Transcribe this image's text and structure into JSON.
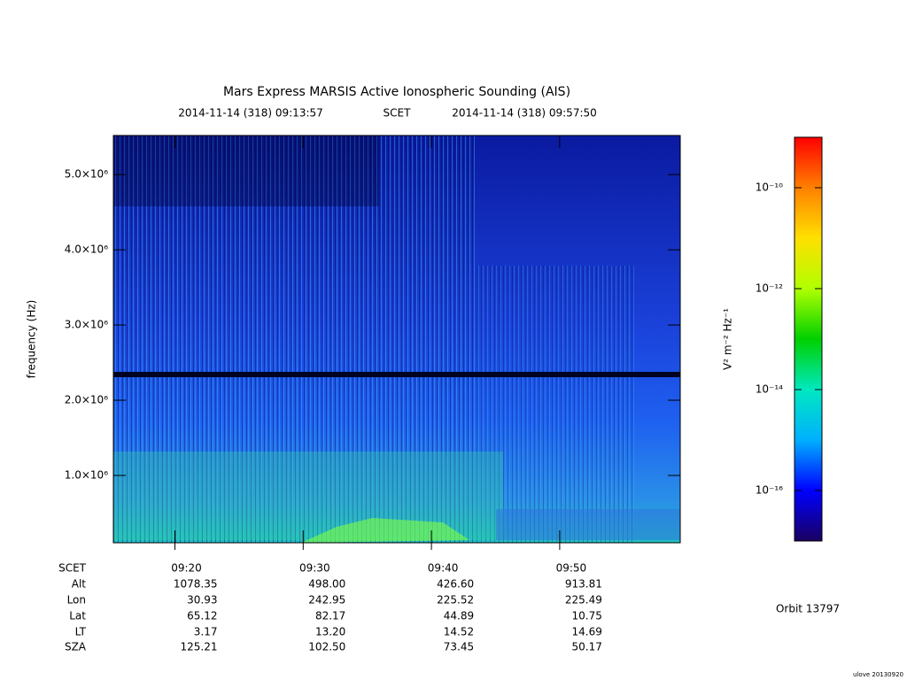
{
  "chart_data": {
    "type": "spectrogram",
    "title": "Mars Express MARSIS Active Ionospheric Sounding (AIS)",
    "start_time": "2014-11-14 (318) 09:13:57",
    "time_system": "SCET",
    "end_time": "2014-11-14 (318) 09:57:50",
    "y_label": "frequency (Hz)",
    "xlim": [
      555.2,
      599.4
    ],
    "xticks": [
      {
        "value": 560,
        "label": "09:20"
      },
      {
        "value": 570,
        "label": "09:30"
      },
      {
        "value": 580,
        "label": "09:40"
      },
      {
        "value": 590,
        "label": "09:50"
      }
    ],
    "ylim": [
      105000,
      5520000
    ],
    "yticks": [
      {
        "value": 1000000,
        "label": "1.0×10⁶"
      },
      {
        "value": 2000000,
        "label": "2.0×10⁶"
      },
      {
        "value": 3000000,
        "label": "3.0×10⁶"
      },
      {
        "value": 4000000,
        "label": "4.0×10⁶"
      },
      {
        "value": 5000000,
        "label": "5.0×10⁶"
      }
    ],
    "ephemeris": {
      "labels": [
        "SCET",
        "Alt",
        "Lon",
        "Lat",
        "LT",
        "SZA"
      ],
      "rows": [
        [
          "1078.35",
          "498.00",
          "426.60",
          "913.81"
        ],
        [
          "30.93",
          "242.95",
          "225.52",
          "225.49"
        ],
        [
          "65.12",
          "82.17",
          "44.89",
          "10.75"
        ],
        [
          "3.17",
          "13.20",
          "14.52",
          "14.69"
        ],
        [
          "125.21",
          "102.50",
          "73.45",
          "50.17"
        ]
      ]
    },
    "colorbar": {
      "label": "V² m⁻² Hz⁻¹",
      "log": true,
      "lim": [
        1e-17,
        1e-09
      ],
      "ticks": [
        {
          "value": 1e-10,
          "label": "10⁻¹⁰"
        },
        {
          "value": 1e-12,
          "label": "10⁻¹²"
        },
        {
          "value": 1e-14,
          "label": "10⁻¹⁴"
        },
        {
          "value": 1e-16,
          "label": "10⁻¹⁶"
        }
      ],
      "colors": [
        "#1a0060",
        "#0000ff",
        "#00b0ff",
        "#00e8c0",
        "#00d000",
        "#b0ff00",
        "#ffe000",
        "#ff8000",
        "#ff0000"
      ]
    },
    "orbit": "Orbit 13797",
    "credit": "ulove 20130920"
  }
}
